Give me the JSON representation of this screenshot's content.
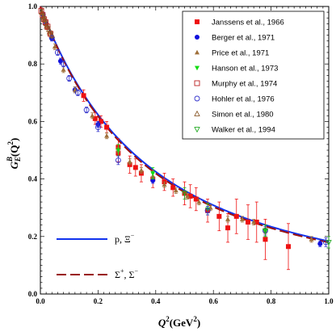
{
  "chart_data": {
    "type": "scatter",
    "xlabel_main": "Q",
    "xlabel_sup": "2",
    "xlabel_unit": "(GeV",
    "xlabel_unit_sup": "2",
    "xlabel_close": ")",
    "ylabel_main": "G",
    "ylabel_sub": "E",
    "ylabel_sup": "B",
    "ylabel_paren": "(Q",
    "ylabel_paren_sup": "2",
    "ylabel_close": ")",
    "xlim": [
      0,
      1
    ],
    "ylim": [
      0,
      1
    ],
    "xticks": [
      "0.0",
      "0.2",
      "0.4",
      "0.6",
      "0.8",
      "1.0"
    ],
    "yticks": [
      "0.0",
      "0.2",
      "0.4",
      "0.6",
      "0.8",
      "1.0"
    ],
    "legend_position": "top-right",
    "series": [
      {
        "name": "Janssens et al., 1966",
        "marker": "square-filled",
        "color": "#ee1111",
        "points": [
          [
            0.15,
            0.69
          ],
          [
            0.19,
            0.61
          ],
          [
            0.21,
            0.6
          ],
          [
            0.23,
            0.58
          ],
          [
            0.27,
            0.51
          ],
          [
            0.27,
            0.49
          ],
          [
            0.31,
            0.45
          ],
          [
            0.33,
            0.44
          ],
          [
            0.35,
            0.42
          ],
          [
            0.39,
            0.4
          ],
          [
            0.43,
            0.39
          ],
          [
            0.46,
            0.37
          ],
          [
            0.5,
            0.35
          ],
          [
            0.52,
            0.34
          ],
          [
            0.54,
            0.33
          ],
          [
            0.58,
            0.29
          ],
          [
            0.62,
            0.27
          ],
          [
            0.65,
            0.23
          ],
          [
            0.68,
            0.27
          ],
          [
            0.72,
            0.25
          ],
          [
            0.75,
            0.25
          ],
          [
            0.78,
            0.19
          ],
          [
            0.86,
            0.165
          ]
        ],
        "errors": [
          0.02,
          0.02,
          0.02,
          0.02,
          0.03,
          0.03,
          0.03,
          0.03,
          0.03,
          0.03,
          0.03,
          0.03,
          0.04,
          0.04,
          0.04,
          0.04,
          0.05,
          0.05,
          0.06,
          0.06,
          0.07,
          0.07,
          0.08
        ]
      },
      {
        "name": "Berger et al., 1971",
        "marker": "circle-filled",
        "color": "#1111dd",
        "points": [
          [
            0.01,
            0.97
          ],
          [
            0.02,
            0.94
          ],
          [
            0.04,
            0.89
          ],
          [
            0.07,
            0.81
          ],
          [
            0.12,
            0.71
          ],
          [
            0.2,
            0.59
          ],
          [
            0.39,
            0.395
          ],
          [
            0.97,
            0.175
          ]
        ],
        "errors": [
          0.01,
          0.01,
          0.01,
          0.01,
          0.01,
          0.01,
          0.01,
          0.01
        ]
      },
      {
        "name": "Price et al., 1971",
        "marker": "triangle-filled",
        "color": "#a0703a",
        "points": [
          [
            0.005,
            0.98
          ],
          [
            0.01,
            0.96
          ],
          [
            0.02,
            0.93
          ],
          [
            0.03,
            0.91
          ],
          [
            0.05,
            0.86
          ],
          [
            0.08,
            0.78
          ],
          [
            0.12,
            0.71
          ],
          [
            0.18,
            0.62
          ],
          [
            0.23,
            0.55
          ],
          [
            0.27,
            0.5
          ],
          [
            0.31,
            0.46
          ],
          [
            0.35,
            0.43
          ],
          [
            0.39,
            0.41
          ],
          [
            0.43,
            0.38
          ],
          [
            0.47,
            0.36
          ],
          [
            0.51,
            0.34
          ],
          [
            0.55,
            0.32
          ],
          [
            0.59,
            0.3
          ],
          [
            0.65,
            0.26
          ],
          [
            0.7,
            0.26
          ],
          [
            0.74,
            0.25
          ],
          [
            0.78,
            0.22
          ],
          [
            0.94,
            0.19
          ]
        ],
        "errors": [
          0.01,
          0.01,
          0.01,
          0.01,
          0.01,
          0.01,
          0.01,
          0.01,
          0.01,
          0.01,
          0.01,
          0.01,
          0.01,
          0.01,
          0.01,
          0.01,
          0.01,
          0.01,
          0.01,
          0.01,
          0.01,
          0.01,
          0.01
        ]
      },
      {
        "name": "Hanson et al., 1973",
        "marker": "triangle-down-filled",
        "color": "#11dd11",
        "points": [
          [
            0.27,
            0.5
          ],
          [
            0.39,
            0.42
          ],
          [
            0.58,
            0.295
          ],
          [
            0.78,
            0.22
          ]
        ],
        "errors": [
          0.02,
          0.02,
          0.02,
          0.02
        ]
      },
      {
        "name": "Murphy et al., 1974",
        "marker": "square-open",
        "color": "#bb2222",
        "points": [
          [
            0.003,
            0.985
          ],
          [
            0.008,
            0.97
          ],
          [
            0.013,
            0.955
          ],
          [
            0.018,
            0.945
          ],
          [
            0.025,
            0.93
          ],
          [
            0.035,
            0.905
          ]
        ],
        "errors": [
          0.01,
          0.01,
          0.01,
          0.01,
          0.01,
          0.01
        ]
      },
      {
        "name": "Hohler et al., 1976",
        "marker": "circle-open",
        "color": "#3333cc",
        "points": [
          [
            0.04,
            0.89
          ],
          [
            0.06,
            0.84
          ],
          [
            0.08,
            0.8
          ],
          [
            0.1,
            0.75
          ],
          [
            0.13,
            0.7
          ],
          [
            0.16,
            0.64
          ],
          [
            0.2,
            0.58
          ],
          [
            0.27,
            0.465
          ],
          [
            0.58,
            0.29
          ],
          [
            0.78,
            0.22
          ],
          [
            0.99,
            0.18
          ]
        ],
        "errors": [
          0.01,
          0.01,
          0.01,
          0.01,
          0.01,
          0.01,
          0.015,
          0.015,
          0.015,
          0.015,
          0.015
        ]
      },
      {
        "name": "Simon et al., 1980",
        "marker": "triangle-open",
        "color": "#8a5a2a",
        "points": [
          [
            0.005,
            0.98
          ],
          [
            0.01,
            0.965
          ],
          [
            0.015,
            0.955
          ],
          [
            0.02,
            0.94
          ],
          [
            0.03,
            0.92
          ],
          [
            0.04,
            0.9
          ]
        ],
        "errors": [
          0.01,
          0.01,
          0.01,
          0.01,
          0.01,
          0.01
        ]
      },
      {
        "name": "Walker et al., 1994",
        "marker": "triangle-down-open",
        "color": "#22aa22",
        "points": [
          [
            0.5,
            0.35
          ],
          [
            0.78,
            0.22
          ],
          [
            1.0,
            0.18
          ]
        ],
        "errors": [
          0.02,
          0.02,
          0.02
        ]
      }
    ],
    "curves": [
      {
        "name": "p, Ξ",
        "name_sup": "−",
        "style": "solid",
        "color": "#1133ee"
      },
      {
        "name": "Σ",
        "name_sup": "+",
        "name_mid": ", Σ",
        "name_sup2": "−",
        "style": "dashed",
        "color": "#991111"
      }
    ]
  }
}
